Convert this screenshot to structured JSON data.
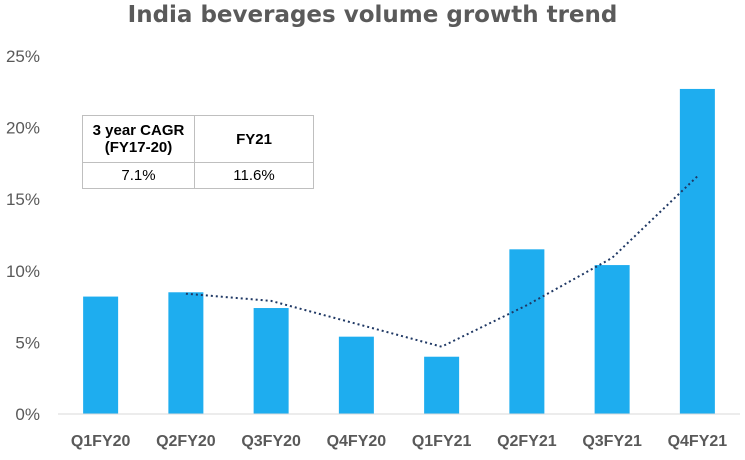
{
  "title": "India beverages volume growth trend",
  "cagr_table": {
    "headers": [
      "3 year CAGR (FY17-20)",
      "FY21"
    ],
    "values": [
      "7.1%",
      "11.6%"
    ]
  },
  "colors": {
    "bar": "#1eadef",
    "trendline": "#1f3864",
    "axis_text": "#595959",
    "title_text": "#5a5a5a"
  },
  "chart_data": {
    "type": "bar",
    "title": "India beverages volume growth trend",
    "categories": [
      "Q1FY20",
      "Q2FY20",
      "Q3FY20",
      "Q4FY20",
      "Q1FY21",
      "Q2FY21",
      "Q3FY21",
      "Q4FY21"
    ],
    "values": [
      8.2,
      8.5,
      7.4,
      5.4,
      4.0,
      11.5,
      10.4,
      22.7
    ],
    "trendline": {
      "style": "dotted",
      "from_category": "Q2FY20",
      "values": [
        8.4,
        7.9,
        6.3,
        4.7,
        7.6,
        10.9,
        16.6
      ]
    },
    "yticks": [
      "0%",
      "5%",
      "10%",
      "15%",
      "20%",
      "25%"
    ],
    "ylim": [
      0,
      25
    ],
    "xlabel": "",
    "ylabel": "",
    "grid": false,
    "legend": "none"
  }
}
